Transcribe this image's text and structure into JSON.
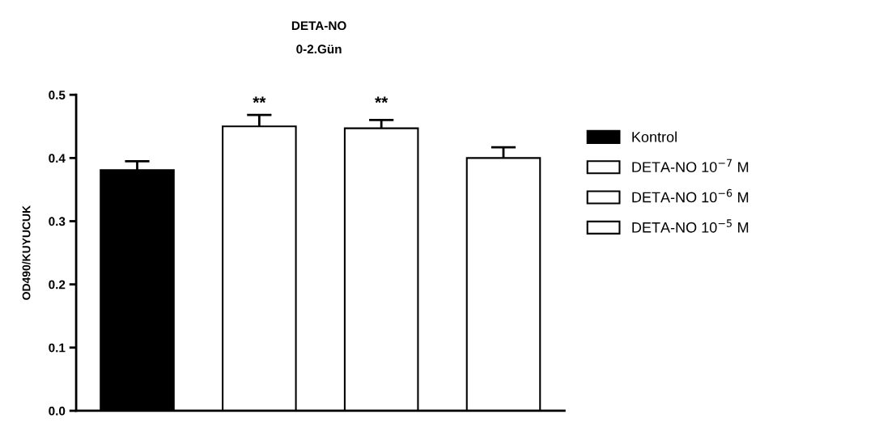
{
  "chart_data": {
    "type": "bar",
    "title": "DETA-NO",
    "subtitle": "0-2.Gün",
    "ylabel": "OD490/KUYUCUK",
    "categories": [
      null,
      null,
      null,
      null
    ],
    "series": [
      {
        "name": "Kontrol",
        "color": "#000000",
        "values": [
          0.381,
          null,
          null,
          null
        ],
        "errors": [
          [
            0.381,
            0.395
          ],
          null,
          null,
          null
        ]
      },
      {
        "name": "DETA-NO 10$^{−7}$ M",
        "color": "#ffffff",
        "values": [
          null,
          0.45,
          null,
          null
        ],
        "errors": [
          null,
          [
            0.45,
            0.468
          ],
          null,
          null
        ]
      },
      {
        "name": "DETA-NO 10$^{−6}$ M",
        "color": "#ffffff",
        "values": [
          null,
          null,
          0.447,
          null
        ],
        "errors": [
          null,
          null,
          [
            0.447,
            0.46
          ],
          null
        ]
      },
      {
        "name": "DETA-NO 10$^{−5}$ M",
        "color": "#ffffff",
        "values": [
          null,
          null,
          null,
          0.4
        ],
        "errors": [
          null,
          null,
          null,
          [
            0.4,
            0.417
          ]
        ]
      }
    ],
    "ylim": [
      0,
      0.5
    ],
    "yticks": [
      {
        "value": 0,
        "label": "0.0"
      },
      {
        "value": 0.1,
        "label": "0.1"
      },
      {
        "value": 0.2,
        "label": "0.2"
      },
      {
        "value": 0.3,
        "label": "0.3"
      },
      {
        "value": 0.4,
        "label": "0.4"
      },
      {
        "value": 0.5,
        "label": "0.5"
      }
    ],
    "annotations": [
      "**",
      "**"
    ],
    "grid": false,
    "legend": "right",
    "tick_labels": "y"
  }
}
